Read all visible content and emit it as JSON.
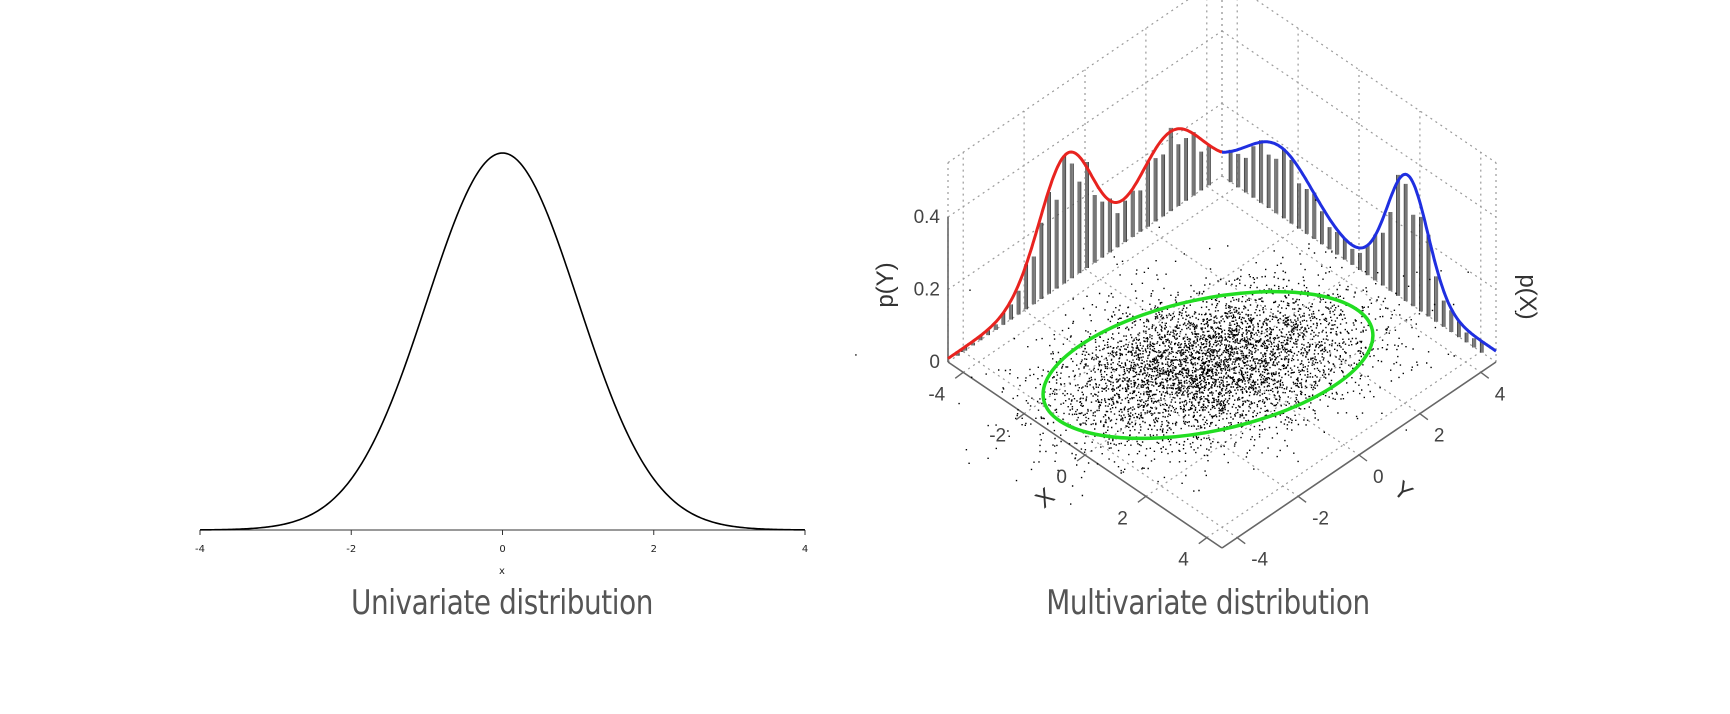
{
  "chart_data": [
    {
      "type": "line",
      "title": "",
      "xlabel": "x",
      "ylabel": "",
      "xlim": [
        -4,
        4
      ],
      "xticks": [
        "-4",
        "-2",
        "0",
        "2",
        "4"
      ],
      "series": [
        {
          "function": "standard-normal-pdf",
          "mean": 0,
          "sd": 1,
          "color": "#000000"
        }
      ],
      "caption": "Univariate distribution"
    },
    {
      "type": "scatter",
      "title": "",
      "xlabel": "X",
      "ylabel": "Y",
      "zlabel_left": "p(Y)",
      "zlabel_right": "p(X)",
      "xticks": [
        "-4",
        "-2",
        "0",
        "2",
        "4"
      ],
      "yticks": [
        "-4",
        "-2",
        "0",
        "2",
        "4"
      ],
      "zticks": [
        "0",
        "0.2",
        "0.4"
      ],
      "colors": {
        "marginal_y": "#e8231f",
        "marginal_x": "#1f2fe0",
        "ellipse": "#22dd22",
        "points": "#000000",
        "bars": "#777777"
      },
      "caption": "Multivariate distribution"
    }
  ]
}
